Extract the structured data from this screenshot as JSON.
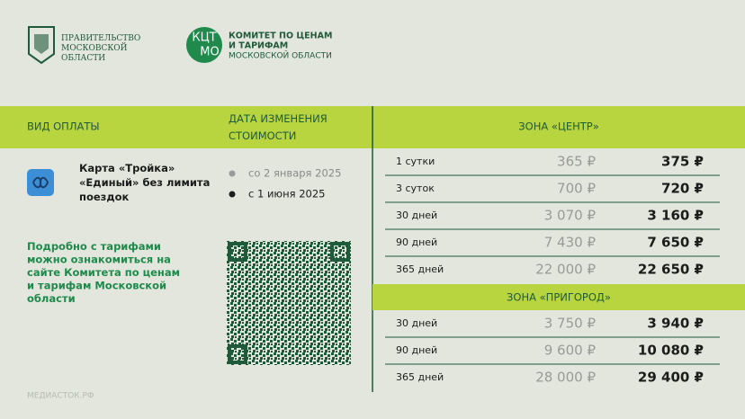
{
  "header": {
    "government": [
      "ПРАВИТЕЛЬСТВО",
      "МОСКОВСКОЙ",
      "ОБЛАСТИ"
    ],
    "logo_text": [
      "КЦТ",
      "МО"
    ],
    "committee": [
      "КОМИТЕТ ПО ЦЕНАМ",
      "И ТАРИФАМ",
      "МОСКОВСКОЙ ОБЛАСТИ"
    ]
  },
  "table": {
    "headers": [
      "ВИД ОПЛАТЫ",
      "ДАТА ИЗМЕНЕНИЯ СТОИМОСТИ",
      "ЗОНА «ЦЕНТР»"
    ],
    "card": "Карта «Тройка» «Единый» без лимита поездок",
    "dates": [
      "со 2 января 2025",
      "с 1 июня 2025"
    ],
    "zones": [
      {
        "name": "ЗОНА «ЦЕНТР»",
        "rows": [
          [
            "1 сутки",
            "365 ₽",
            "375 ₽"
          ],
          [
            "3 суток",
            "700 ₽",
            "720 ₽"
          ],
          [
            "30 дней",
            "3 070 ₽",
            "3 160 ₽"
          ],
          [
            "90 дней",
            "7 430 ₽",
            "7 650 ₽"
          ],
          [
            "365 дней",
            "22 000 ₽",
            "22 650 ₽"
          ]
        ]
      },
      {
        "name": "ЗОНА «ПРИГОРОД»",
        "rows": [
          [
            "30 дней",
            "3 750 ₽",
            "3 940 ₽"
          ],
          [
            "90 дней",
            "9 600 ₽",
            "10 080 ₽"
          ],
          [
            "365 дней",
            "28 000 ₽",
            "29 400 ₽"
          ]
        ]
      }
    ]
  },
  "info": "Подробно с тарифами можно ознакомиться на сайте Комитета по ценам и тарифам Московской области",
  "footer": "МЕДИАСТОК.РФ"
}
